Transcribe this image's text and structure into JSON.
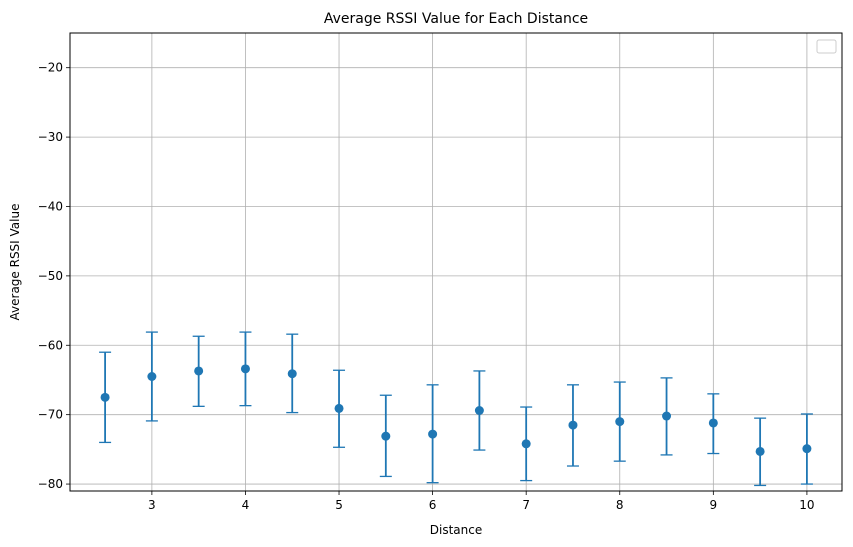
{
  "chart_data": {
    "type": "scatter",
    "title": "Average RSSI Value for Each Distance",
    "xlabel": "Distance",
    "ylabel": "Average RSSI Value",
    "xlim": [
      2.125,
      10.375
    ],
    "ylim": [
      -81,
      -15
    ],
    "x_ticks": [
      3,
      4,
      5,
      6,
      7,
      8,
      9,
      10
    ],
    "y_ticks": [
      -80,
      -70,
      -60,
      -50,
      -40,
      -30,
      -20
    ],
    "grid": true,
    "legend": "top-right, empty",
    "colors": {
      "series": "#1f77b4",
      "grid": "#b0b0b0"
    },
    "series": [
      {
        "x": [
          2.5,
          3.0,
          3.5,
          4.0,
          4.5,
          5.0,
          5.5,
          6.0,
          6.5,
          7.0,
          7.5,
          8.0,
          8.5,
          9.0,
          9.5,
          10.0
        ],
        "y": [
          -67.5,
          -64.5,
          -63.7,
          -63.4,
          -64.1,
          -69.1,
          -73.1,
          -72.8,
          -69.4,
          -74.2,
          -71.5,
          -71.0,
          -70.2,
          -71.2,
          -75.3,
          -74.9
        ],
        "y_low": [
          -74.0,
          -70.9,
          -68.8,
          -68.7,
          -69.7,
          -74.7,
          -78.9,
          -79.8,
          -75.1,
          -79.5,
          -77.4,
          -76.7,
          -75.8,
          -75.6,
          -80.2,
          -80.0
        ],
        "y_high": [
          -61.0,
          -58.1,
          -58.7,
          -58.1,
          -58.4,
          -63.6,
          -67.2,
          -65.7,
          -63.7,
          -68.9,
          -65.7,
          -65.3,
          -64.7,
          -67.0,
          -70.5,
          -69.9
        ]
      }
    ]
  }
}
